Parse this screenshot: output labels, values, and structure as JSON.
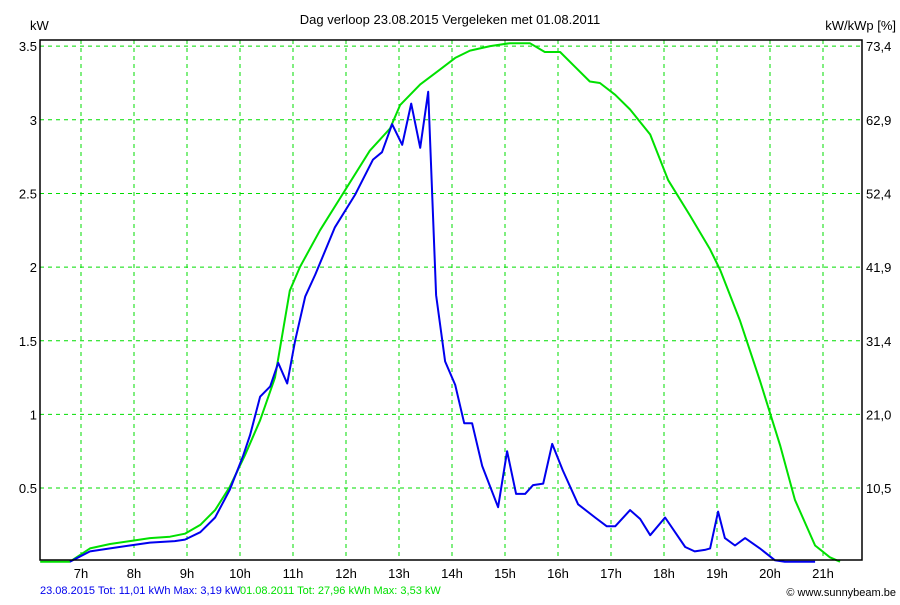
{
  "chart_data": {
    "type": "line",
    "title": "Dag  verloop 23.08.2015   Vergeleken met 01.08.2011",
    "ylabel": "kW",
    "ylabel_right": "kW/kWp [%]",
    "ylim": [
      0,
      3.5
    ],
    "xlim": [
      6.23,
      21.75
    ],
    "grid": true,
    "y_ticks": [
      0.5,
      1,
      1.5,
      2,
      2.5,
      3,
      3.5
    ],
    "y_tick_labels": [
      "0.5",
      "1",
      "1.5",
      "2",
      "2.5",
      "3",
      "3.5"
    ],
    "y_right_tick_labels": [
      "10,5",
      "21,0",
      "31,4",
      "41,9",
      "52,4",
      "62,9",
      "73,4"
    ],
    "x_ticks": [
      7,
      8,
      9,
      10,
      11,
      12,
      13,
      14,
      15,
      16,
      17,
      18,
      19,
      20,
      21
    ],
    "x_tick_labels": [
      "7h",
      "8h",
      "9h",
      "10h",
      "11h",
      "12h",
      "13h",
      "14h",
      "15h",
      "16h",
      "17h",
      "18h",
      "19h",
      "20h",
      "21h"
    ],
    "series": [
      {
        "name": "01.08.2011",
        "color": "#00e000",
        "legend": "01.08.2011 Tot: 27,96 kWh Max: 3,53 kW",
        "x": [
          6.23,
          6.79,
          7.17,
          7.55,
          7.92,
          8.3,
          8.68,
          8.96,
          9.25,
          9.53,
          9.81,
          10.09,
          10.38,
          10.66,
          10.94,
          11.13,
          11.51,
          11.98,
          12.45,
          12.83,
          13.02,
          13.4,
          13.77,
          14.06,
          14.34,
          14.72,
          15.09,
          15.47,
          15.75,
          16.04,
          16.32,
          16.6,
          16.79,
          17.08,
          17.36,
          17.74,
          18.08,
          18.49,
          18.87,
          19.06,
          19.43,
          19.81,
          20.19,
          20.47,
          20.85,
          21.13,
          21.32
        ],
        "y": [
          0,
          0,
          0.09,
          0.12,
          0.14,
          0.16,
          0.17,
          0.19,
          0.25,
          0.35,
          0.51,
          0.72,
          0.96,
          1.25,
          1.84,
          2.0,
          2.25,
          2.52,
          2.79,
          2.94,
          3.1,
          3.24,
          3.34,
          3.42,
          3.47,
          3.5,
          3.52,
          3.52,
          3.46,
          3.46,
          3.36,
          3.26,
          3.25,
          3.17,
          3.07,
          2.9,
          2.59,
          2.35,
          2.12,
          1.98,
          1.64,
          1.23,
          0.79,
          0.42,
          0.11,
          0.03,
          0
        ]
      },
      {
        "name": "23.08.2015",
        "color": "#0000ee",
        "legend": "23.08.2015 Tot: 11,01 kWh Max: 3,19 kW",
        "x": [
          6.79,
          7.17,
          7.55,
          7.92,
          8.3,
          8.77,
          8.96,
          9.25,
          9.53,
          9.81,
          10.06,
          10.19,
          10.38,
          10.57,
          10.72,
          10.89,
          11.04,
          11.23,
          11.42,
          11.79,
          12.17,
          12.51,
          12.68,
          12.87,
          13.06,
          13.23,
          13.4,
          13.55,
          13.7,
          13.87,
          14.06,
          14.23,
          14.38,
          14.57,
          14.87,
          15.04,
          15.21,
          15.38,
          15.53,
          15.72,
          15.89,
          16.09,
          16.38,
          16.7,
          16.92,
          17.08,
          17.36,
          17.55,
          17.74,
          18.02,
          18.21,
          18.4,
          18.58,
          18.77,
          18.87,
          19.02,
          19.15,
          19.34,
          19.53,
          19.81,
          20.09,
          20.28,
          20.85
        ],
        "y": [
          0,
          0.07,
          0.09,
          0.11,
          0.13,
          0.14,
          0.15,
          0.2,
          0.3,
          0.49,
          0.72,
          0.86,
          1.12,
          1.19,
          1.35,
          1.21,
          1.5,
          1.8,
          1.95,
          2.27,
          2.49,
          2.73,
          2.78,
          2.97,
          2.83,
          3.11,
          2.81,
          3.19,
          1.81,
          1.36,
          1.2,
          0.94,
          0.94,
          0.65,
          0.37,
          0.75,
          0.46,
          0.46,
          0.52,
          0.53,
          0.8,
          0.62,
          0.39,
          0.3,
          0.24,
          0.24,
          0.35,
          0.29,
          0.18,
          0.3,
          0.2,
          0.1,
          0.07,
          0.08,
          0.09,
          0.34,
          0.16,
          0.11,
          0.16,
          0.09,
          0.01,
          0,
          0
        ]
      }
    ],
    "copyright": "© www.sunnybeam.be"
  }
}
